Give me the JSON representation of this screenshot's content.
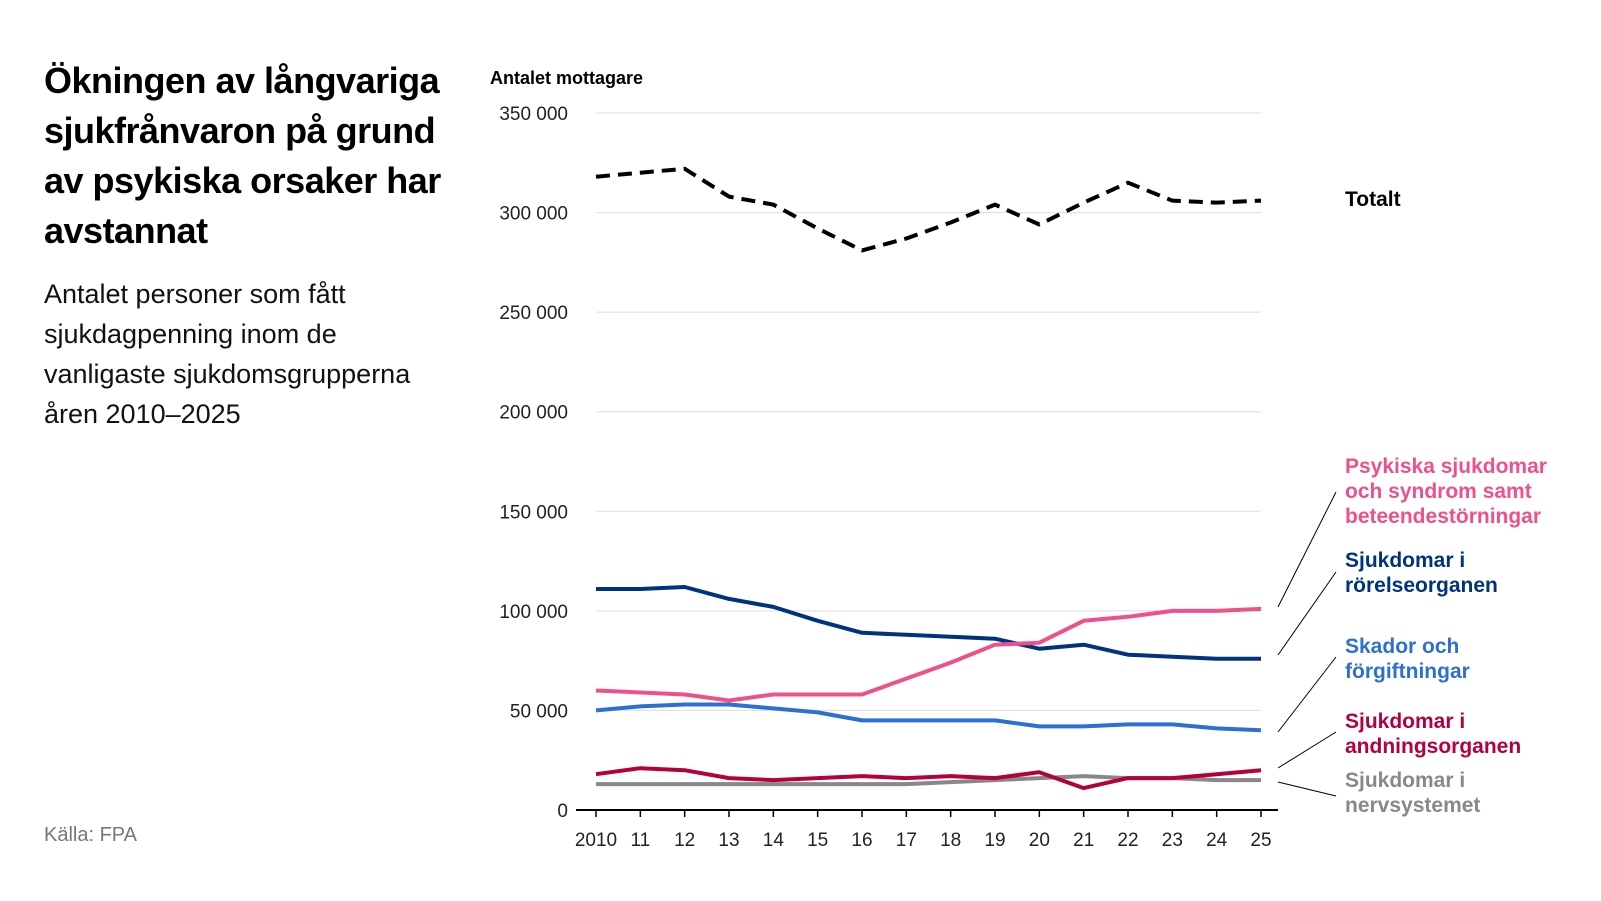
{
  "chart_data": {
    "type": "line",
    "title": "Ökningen av långvariga sjukfrånvaron på grund av psykiska orsaker har avstannat",
    "subtitle": "Antalet personer som fått sjukdagpenning inom de vanligaste sjukdomsgrupperna åren 2010–2025",
    "ylabel": "Antalet mottagare",
    "source": "Källa: FPA",
    "ylim": [
      0,
      350000
    ],
    "yticks": [
      0,
      50000,
      100000,
      150000,
      200000,
      250000,
      300000,
      350000
    ],
    "ytick_labels": [
      "0",
      "50 000",
      "100 000",
      "150 000",
      "200 000",
      "250 000",
      "300 000",
      "350 000"
    ],
    "x": [
      2010,
      2011,
      2012,
      2013,
      2014,
      2015,
      2016,
      2017,
      2018,
      2019,
      2020,
      2021,
      2022,
      2023,
      2024,
      2025
    ],
    "xtick_labels": [
      "2010",
      "11",
      "12",
      "13",
      "14",
      "15",
      "16",
      "17",
      "18",
      "19",
      "20",
      "21",
      "22",
      "23",
      "24",
      "25"
    ],
    "grid": true,
    "legend": "right, labels at line ends",
    "series": [
      {
        "name": "Totalt",
        "color": "#000000",
        "dashed": true,
        "values": [
          318000,
          320000,
          322000,
          308000,
          304000,
          292000,
          281000,
          287000,
          295000,
          304000,
          294000,
          305000,
          315000,
          306000,
          305000,
          306000
        ]
      },
      {
        "name": "Psykiska sjukdomar och syndrom samt beteendestörningar",
        "color": "#f0508a",
        "values": [
          60000,
          59000,
          58000,
          55000,
          58000,
          58000,
          58000,
          66000,
          74000,
          83000,
          84000,
          95000,
          97000,
          100000,
          100000,
          101000
        ]
      },
      {
        "name": "Sjukdomar i rörelseorganen",
        "color": "#00337f",
        "values": [
          111000,
          111000,
          112000,
          106000,
          102000,
          95000,
          89000,
          88000,
          87000,
          86000,
          81000,
          83000,
          78000,
          77000,
          76000,
          76000
        ]
      },
      {
        "name": "Skador och förgiftningar",
        "color": "#2d6fd2",
        "values": [
          50000,
          52000,
          53000,
          53000,
          51000,
          49000,
          45000,
          45000,
          45000,
          45000,
          42000,
          42000,
          43000,
          43000,
          41000,
          40000
        ]
      },
      {
        "name": "Sjukdomar i andningsorganen",
        "color": "#b5003f",
        "values": [
          18000,
          21000,
          20000,
          16000,
          15000,
          16000,
          17000,
          16000,
          17000,
          16000,
          19000,
          11000,
          16000,
          16000,
          18000,
          20000
        ]
      },
      {
        "name": "Sjukdomar i nervsystemet",
        "color": "#888888",
        "values": [
          13000,
          13000,
          13000,
          13000,
          13000,
          13000,
          13000,
          13000,
          14000,
          15000,
          16000,
          17000,
          16000,
          16000,
          15000,
          15000
        ]
      }
    ]
  }
}
